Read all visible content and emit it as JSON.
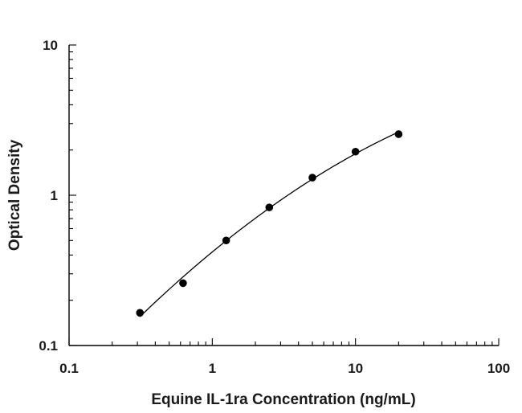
{
  "chart_data": {
    "type": "scatter",
    "title": "",
    "xlabel": "Equine IL-1ra Concentration (ng/mL)",
    "ylabel": "Optical Density",
    "xscale": "log",
    "yscale": "log",
    "xlim": [
      0.1,
      100
    ],
    "ylim": [
      0.1,
      10
    ],
    "x_ticks": [
      0.1,
      1,
      10,
      100
    ],
    "x_tick_labels": [
      "0.1",
      "1",
      "10",
      "100"
    ],
    "y_ticks": [
      0.1,
      1,
      10
    ],
    "y_tick_labels": [
      "0.1",
      "1",
      "10"
    ],
    "grid": false,
    "legend": "none",
    "series": [
      {
        "x": [
          0.3125,
          0.625,
          1.25,
          2.5,
          5,
          10,
          20
        ],
        "y": [
          0.165,
          0.26,
          0.5,
          0.83,
          1.31,
          1.95,
          2.55
        ],
        "marker": "filled-circle",
        "fit_curve": true,
        "color": "#000000"
      }
    ]
  }
}
